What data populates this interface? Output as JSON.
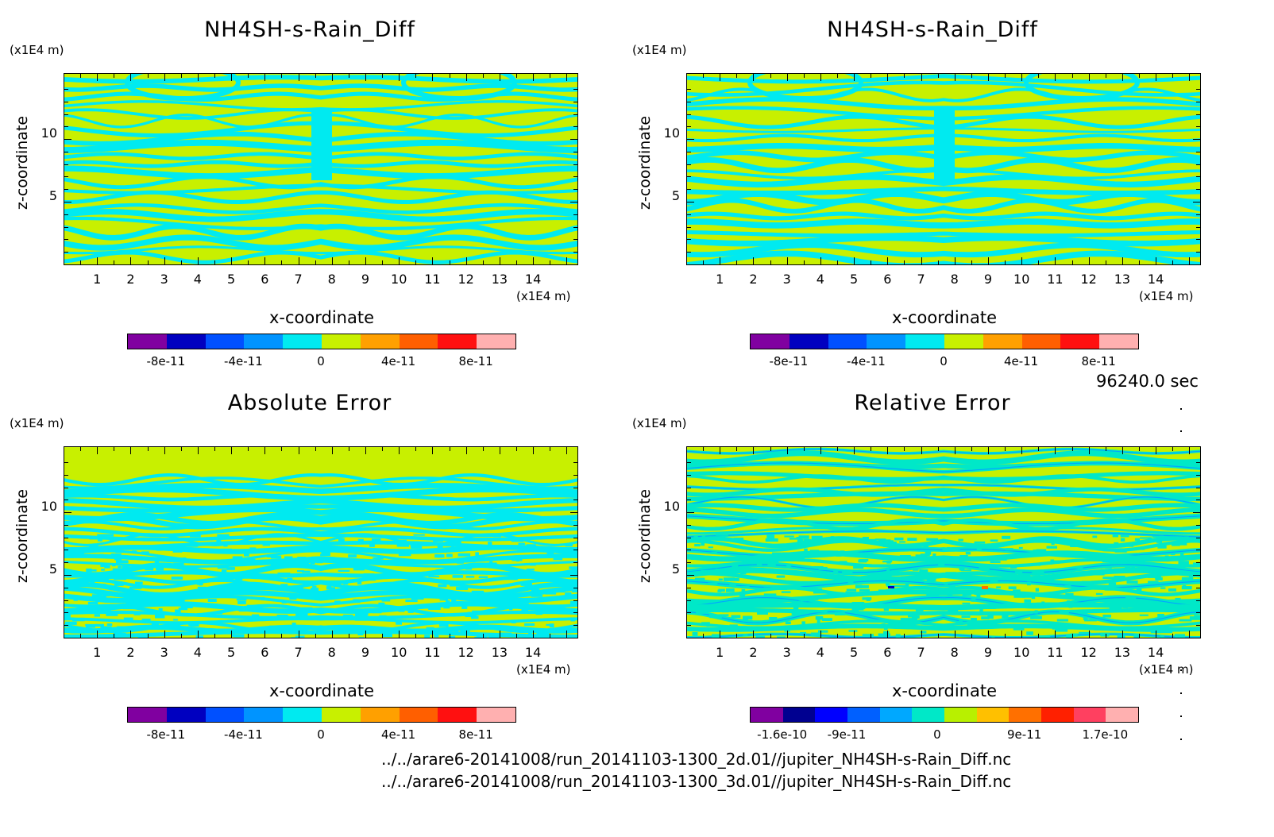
{
  "panels": [
    {
      "id": "p1",
      "title": "NH4SH-s-Rain_Diff",
      "z_unit": "(x1E4 m)",
      "ylabel": "z-coordinate",
      "xlabel": "x-coordinate",
      "x_unit": "(x1E4 m)",
      "yticks": [
        "5",
        "10"
      ],
      "xticks": [
        "1",
        "2",
        "3",
        "4",
        "5",
        "6",
        "7",
        "8",
        "9",
        "10",
        "11",
        "12",
        "13",
        "14"
      ],
      "colorbar": {
        "colors": [
          "#8000a0",
          "#0000c0",
          "#0050ff",
          "#0094ff",
          "#00eaf0",
          "#c8f000",
          "#ffa000",
          "#ff5f00",
          "#ff1010",
          "#ffb0b0"
        ],
        "labels": [
          "-8e-11",
          "-4e-11",
          "0",
          "4e-11",
          "8e-11"
        ]
      }
    },
    {
      "id": "p2",
      "title": "NH4SH-s-Rain_Diff",
      "z_unit": "(x1E4 m)",
      "ylabel": "z-coordinate",
      "xlabel": "x-coordinate",
      "x_unit": "(x1E4 m)",
      "yticks": [
        "5",
        "10"
      ],
      "xticks": [
        "1",
        "2",
        "3",
        "4",
        "5",
        "6",
        "7",
        "8",
        "9",
        "10",
        "11",
        "12",
        "13",
        "14"
      ],
      "colorbar": {
        "colors": [
          "#8000a0",
          "#0000c0",
          "#0050ff",
          "#0094ff",
          "#00eaf0",
          "#c8f000",
          "#ffa000",
          "#ff5f00",
          "#ff1010",
          "#ffb0b0"
        ],
        "labels": [
          "-8e-11",
          "-4e-11",
          "0",
          "4e-11",
          "8e-11"
        ]
      }
    },
    {
      "id": "p3",
      "title": "Absolute Error",
      "z_unit": "(x1E4 m)",
      "ylabel": "z-coordinate",
      "xlabel": "x-coordinate",
      "x_unit": "(x1E4 m)",
      "yticks": [
        "5",
        "10"
      ],
      "xticks": [
        "1",
        "2",
        "3",
        "4",
        "5",
        "6",
        "7",
        "8",
        "9",
        "10",
        "11",
        "12",
        "13",
        "14"
      ],
      "colorbar": {
        "colors": [
          "#8000a0",
          "#0000c0",
          "#0050ff",
          "#0094ff",
          "#00eaf0",
          "#c8f000",
          "#ffa000",
          "#ff5f00",
          "#ff1010",
          "#ffb0b0"
        ],
        "labels": [
          "-8e-11",
          "-4e-11",
          "0",
          "4e-11",
          "8e-11"
        ]
      }
    },
    {
      "id": "p4",
      "title": "Relative Error",
      "z_unit": "(x1E4 m)",
      "ylabel": "z-coordinate",
      "xlabel": "x-coordinate",
      "x_unit": "(x1E4 m)",
      "yticks": [
        "5",
        "10"
      ],
      "xticks": [
        "1",
        "2",
        "3",
        "4",
        "5",
        "6",
        "7",
        "8",
        "9",
        "10",
        "11",
        "12",
        "13",
        "14"
      ],
      "colorbar": {
        "colors": [
          "#8000a0",
          "#000090",
          "#0000ff",
          "#0060ff",
          "#00a8ff",
          "#00e8c8",
          "#b8f000",
          "#ffc000",
          "#ff7000",
          "#ff2000",
          "#ff4060",
          "#ffb0b0"
        ],
        "labels": [
          "-1.6e-10",
          "-9e-11",
          "0",
          "9e-11",
          "1.7e-10"
        ]
      }
    }
  ],
  "time_label": "96240.0 sec",
  "files": [
    "../../arare6-20141008/run_20141103-1300_2d.01//jupiter_NH4SH-s-Rain_Diff.nc",
    "../../arare6-20141008/run_20141103-1300_3d.01//jupiter_NH4SH-s-Rain_Diff.nc"
  ],
  "chart_data": [
    {
      "type": "heatmap",
      "title": "NH4SH-s-Rain_Diff",
      "xlabel": "x-coordinate",
      "ylabel": "z-coordinate",
      "x_unit": "(x1E4 m)",
      "y_unit": "(x1E4 m)",
      "xlim": [
        0,
        15
      ],
      "ylim": [
        0,
        15
      ],
      "colorbar_ticks": [
        -8e-11,
        -4e-11,
        0,
        4e-11,
        8e-11
      ],
      "dominant_levels": [
        "0 band (yellow-green)",
        "below 0 band (cyan)"
      ]
    },
    {
      "type": "heatmap",
      "title": "NH4SH-s-Rain_Diff",
      "xlabel": "x-coordinate",
      "ylabel": "z-coordinate",
      "x_unit": "(x1E4 m)",
      "y_unit": "(x1E4 m)",
      "xlim": [
        0,
        15
      ],
      "ylim": [
        0,
        15
      ],
      "colorbar_ticks": [
        -8e-11,
        -4e-11,
        0,
        4e-11,
        8e-11
      ],
      "dominant_levels": [
        "0 band (yellow-green)",
        "below 0 band (cyan)"
      ]
    },
    {
      "type": "heatmap",
      "title": "Absolute Error",
      "xlabel": "x-coordinate",
      "ylabel": "z-coordinate",
      "x_unit": "(x1E4 m)",
      "y_unit": "(x1E4 m)",
      "xlim": [
        0,
        15
      ],
      "ylim": [
        0,
        15
      ],
      "colorbar_ticks": [
        -8e-11,
        -4e-11,
        0,
        4e-11,
        8e-11
      ],
      "dominant_levels": [
        "0 band (yellow-green)",
        "below 0 band (cyan)"
      ]
    },
    {
      "type": "heatmap",
      "title": "Relative Error",
      "xlabel": "x-coordinate",
      "ylabel": "z-coordinate",
      "x_unit": "(x1E4 m)",
      "y_unit": "(x1E4 m)",
      "xlim": [
        0,
        15
      ],
      "ylim": [
        0,
        15
      ],
      "colorbar_ticks": [
        -1.6e-10,
        -9e-11,
        0,
        9e-11,
        1.7e-10
      ],
      "dominant_levels": [
        "0 band (yellow-green)",
        "below 0 bands (teal, light blue)"
      ]
    }
  ]
}
